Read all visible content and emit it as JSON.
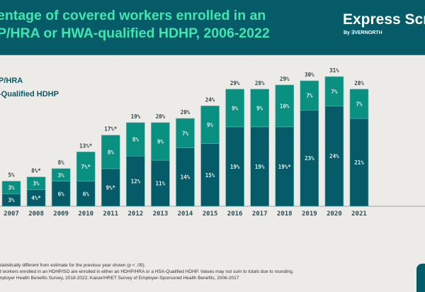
{
  "header": {
    "title_line1": "entage of covered workers enrolled in an",
    "title_line2": "P/HRA or HWA-qualified HDHP, 2006-2022",
    "logo": "Express Scr",
    "logo_sub": "By ∃VERNORTH"
  },
  "colors": {
    "header_bg": "#055b67",
    "title": "#3fe6b0",
    "hra": "#0a9080",
    "hsa": "#055b67"
  },
  "chart_data": {
    "type": "bar",
    "stacked": true,
    "title": "entage of covered workers enrolled in an P/HRA or HWA-qualified HDHP, 2006-2022",
    "categories": [
      "2007",
      "2008",
      "2009",
      "2010",
      "2011",
      "2012",
      "2013",
      "2014",
      "2015",
      "2016",
      "2017",
      "2018",
      "2019",
      "2020",
      "2021"
    ],
    "series": [
      {
        "name": "-Qualified HDHP",
        "color": "#055b67",
        "values": [
          3,
          4,
          6,
          6,
          9,
          12,
          11,
          14,
          15,
          19,
          19,
          19,
          23,
          24,
          21
        ],
        "labels": [
          "3%",
          "4%*",
          "6%",
          "6%",
          "9%*",
          "12%",
          "11%",
          "14%",
          "15%",
          "19%",
          "19%",
          "19%*",
          "23%",
          "24%",
          "21%"
        ]
      },
      {
        "name": "P/HRA",
        "color": "#0a9080",
        "values": [
          3,
          3,
          3,
          7,
          8,
          8,
          9,
          7,
          9,
          9,
          9,
          10,
          7,
          7,
          7
        ],
        "labels": [
          "3%",
          "3%",
          "3%",
          "7%*",
          "8%",
          "8%",
          "9%",
          "7%",
          "9%",
          "9%",
          "9%",
          "10%",
          "7%",
          "7%",
          "7%"
        ]
      }
    ],
    "totals": [
      5,
      8,
      8,
      13,
      17,
      19,
      20,
      20,
      24,
      29,
      28,
      29,
      30,
      31,
      28
    ],
    "total_labels": [
      "5%",
      "8%*",
      "8%",
      "13%*",
      "17%*",
      "19%",
      "20%",
      "20%",
      "24%",
      "29%",
      "28%",
      "29%",
      "30%",
      "31%",
      "28%"
    ],
    "ylim": [
      0,
      32
    ],
    "grid": false,
    "legend": "top-left"
  },
  "legend": {
    "hra": "P/HRA",
    "hsa": "-Qualified HDHP"
  },
  "footnotes": [
    "statistically different from estimate for the previous year shown (p < .05).",
    "d workers enrolled in an HDHP/SO are enrolled in either an HDHP/HRA or a HSA-Qualified HDHP. Values may not sum to totals due to rounding.",
    "mployer Health Benefits Survey, 2018-2022; Kaiser/HRET Survey of Employer-Sponsored Health Benefits, 2006-2017"
  ]
}
